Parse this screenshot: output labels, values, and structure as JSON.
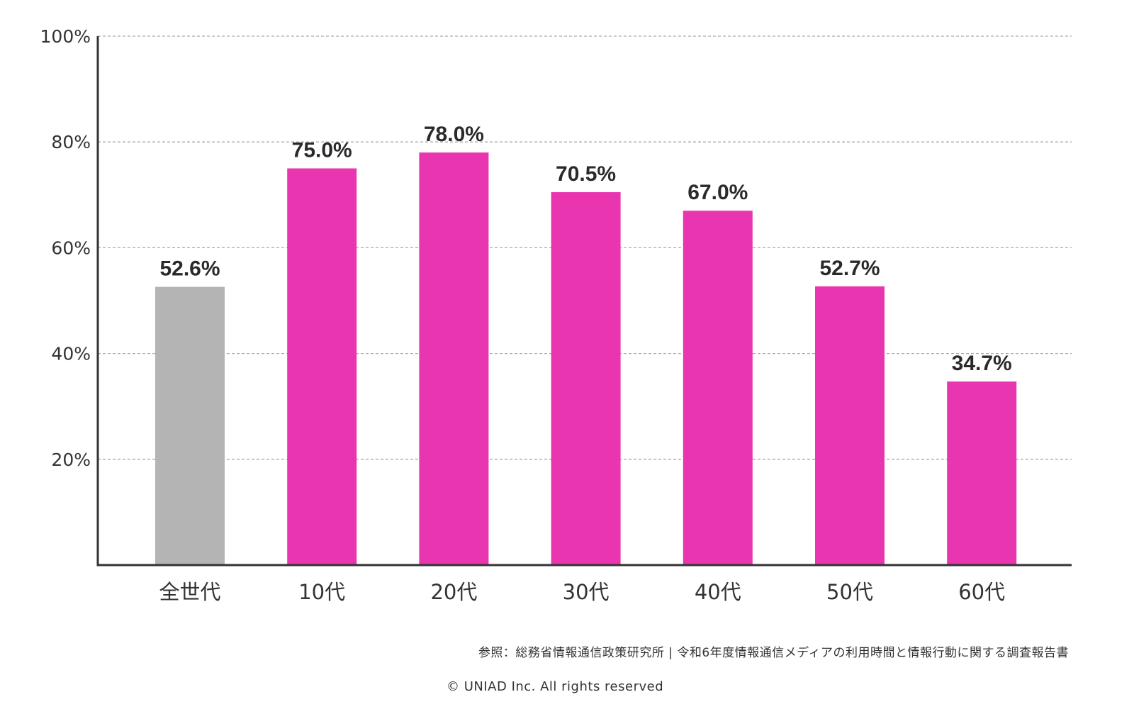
{
  "chart_data": {
    "type": "bar",
    "categories": [
      "全世代",
      "10代",
      "20代",
      "30代",
      "40代",
      "50代",
      "60代"
    ],
    "values": [
      52.6,
      75.0,
      78.0,
      70.5,
      67.0,
      52.7,
      34.7
    ],
    "data_labels": [
      "52.6%",
      "75.0%",
      "78.0%",
      "70.5%",
      "67.0%",
      "52.7%",
      "34.7%"
    ],
    "colors": [
      "#b4b4b4",
      "#e935b0",
      "#e935b0",
      "#e935b0",
      "#e935b0",
      "#e935b0",
      "#e935b0"
    ],
    "ylim": [
      0,
      100
    ],
    "yticks": [
      20,
      40,
      60,
      80,
      100
    ],
    "ytick_labels": [
      "20%",
      "40%",
      "60%",
      "80%",
      "100%"
    ],
    "grid": "horizontal dashed",
    "title": "",
    "xlabel": "",
    "ylabel": ""
  },
  "source": "参照：総務省情報通信政策研究所 | 令和6年度情報通信メディアの利用時間と情報行動に関する調査報告書",
  "copyright": "© UNIAD Inc. All rights reserved"
}
